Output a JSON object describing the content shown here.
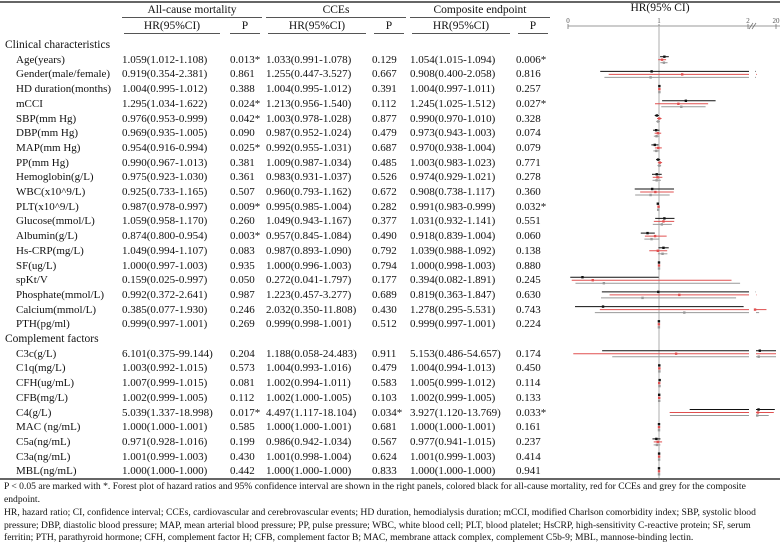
{
  "headers": {
    "group1": "All-cause mortality",
    "group2": "CCEs",
    "group3": "Composite endpoint",
    "plot_title": "HR(95% CI)",
    "hr": "HR(95%CI)",
    "p": "P"
  },
  "chart_data": {
    "type": "forest",
    "title": "HR(95% CI)",
    "axis_ticks": [
      "0",
      "1",
      "2",
      "20"
    ],
    "reference_line": 1,
    "series": [
      {
        "name": "All-cause mortality",
        "color": "#111111"
      },
      {
        "name": "CCEs",
        "color": "#e05050"
      },
      {
        "name": "Composite endpoint",
        "color": "#999999"
      }
    ]
  },
  "rows": [
    {
      "section": "Clinical characteristics"
    },
    {
      "label": "Age(years)",
      "v": [
        "1.059(1.012-1.108)",
        "0.013*",
        "1.033(0.991-1.078)",
        "0.129",
        "1.054(1.015-1.094)",
        "0.006*"
      ]
    },
    {
      "label": "Gender(male/female)",
      "v": [
        "0.919(0.354-2.381)",
        "0.861",
        "1.255(0.447-3.527)",
        "0.667",
        "0.908(0.400-2.058)",
        "0.816"
      ]
    },
    {
      "label": "HD duration(months)",
      "v": [
        "1.004(0.995-1.012)",
        "0.388",
        "1.004(0.995-1.012)",
        "0.391",
        "1.004(0.997-1.011)",
        "0.257"
      ]
    },
    {
      "label": "mCCI",
      "v": [
        "1.295(1.034-1.622)",
        "0.024*",
        "1.213(0.956-1.540)",
        "0.112",
        "1.245(1.025-1.512)",
        "0.027*"
      ]
    },
    {
      "label": "SBP(mm Hg)",
      "v": [
        "0.976(0.953-0.999)",
        "0.042*",
        "1.003(0.978-1.028)",
        "0.877",
        "0.990(0.970-1.010)",
        "0.328"
      ]
    },
    {
      "label": "DBP(mm Hg)",
      "v": [
        "0.969(0.935-1.005)",
        "0.090",
        "0.987(0.952-1.024)",
        "0.479",
        "0.973(0.943-1.003)",
        "0.074"
      ]
    },
    {
      "label": "MAP(mm Hg)",
      "v": [
        "0.954(0.916-0.994)",
        "0.025*",
        "0.992(0.955-1.031)",
        "0.687",
        "0.970(0.938-1.004)",
        "0.079"
      ]
    },
    {
      "label": "PP(mm Hg)",
      "v": [
        "0.990(0.967-1.013)",
        "0.381",
        "1.009(0.987-1.034)",
        "0.485",
        "1.003(0.983-1.023)",
        "0.771"
      ]
    },
    {
      "label": "Hemoglobin(g/L)",
      "v": [
        "0.975(0.923-1.030)",
        "0.361",
        "0.983(0.931-1.037)",
        "0.526",
        "0.974(0.929-1.021)",
        "0.278"
      ]
    },
    {
      "label": "WBC(x10^9/L)",
      "v": [
        "0.925(0.733-1.165)",
        "0.507",
        "0.960(0.793-1.162)",
        "0.672",
        "0.908(0.738-1.117)",
        "0.360"
      ]
    },
    {
      "label": "PLT(x10^9/L)",
      "v": [
        "0.987(0.978-0.997)",
        "0.009*",
        "0.995(0.985-1.004)",
        "0.282",
        "0.991(0.983-0.999)",
        "0.032*"
      ]
    },
    {
      "label": "Glucose(mmol/L)",
      "v": [
        "1.059(0.958-1.170)",
        "0.260",
        "1.049(0.943-1.167)",
        "0.377",
        "1.031(0.932-1.141)",
        "0.551"
      ]
    },
    {
      "label": "Albumin(g/L)",
      "v": [
        "0.874(0.800-0.954)",
        "0.003*",
        "0.957(0.845-1.084)",
        "0.490",
        "0.918(0.839-1.004)",
        "0.060"
      ]
    },
    {
      "label": "Hs-CRP(mg/L)",
      "v": [
        "1.049(0.994-1.107)",
        "0.083",
        "0.987(0.893-1.090)",
        "0.792",
        "1.039(0.988-1.092)",
        "0.138"
      ]
    },
    {
      "label": "SF(ug/L)",
      "v": [
        "1.000(0.997-1.003)",
        "0.935",
        "1.000(0.996-1.003)",
        "0.794",
        "1.000(0.998-1.003)",
        "0.880"
      ]
    },
    {
      "label": "spKt/V",
      "v": [
        "0.159(0.025-0.997)",
        "0.050",
        "0.272(0.041-1.797)",
        "0.177",
        "0.394(0.082-1.891)",
        "0.245"
      ]
    },
    {
      "label": "Phosphate(mmol/L)",
      "v": [
        "0.992(0.372-2.641)",
        "0.987",
        "1.223(0.457-3.277)",
        "0.689",
        "0.819(0.363-1.847)",
        "0.630"
      ]
    },
    {
      "label": "Calcium(mmol/L)",
      "v": [
        "0.385(0.077-1.930)",
        "0.246",
        "2.032(0.350-11.808)",
        "0.430",
        "1.278(0.295-5.531)",
        "0.743"
      ]
    },
    {
      "label": "PTH(pg/ml)",
      "v": [
        "0.999(0.997-1.001)",
        "0.269",
        "0.999(0.998-1.001)",
        "0.512",
        "0.999(0.997-1.001)",
        "0.224"
      ]
    },
    {
      "section": "Complement factors"
    },
    {
      "label": "C3c(g/L)",
      "v": [
        "6.101(0.375-99.144)",
        "0.204",
        "1.188(0.058-24.483)",
        "0.911",
        "5.153(0.486-54.657)",
        "0.174"
      ]
    },
    {
      "label": "C1q(mg/L)",
      "v": [
        "1.003(0.992-1.015)",
        "0.573",
        "1.004(0.993-1.016)",
        "0.479",
        "1.004(0.994-1.013)",
        "0.450"
      ]
    },
    {
      "label": "CFH(ug/mL)",
      "v": [
        "1.007(0.999-1.015)",
        "0.081",
        "1.002(0.994-1.011)",
        "0.583",
        "1.005(0.999-1.012)",
        "0.114"
      ]
    },
    {
      "label": "CFB(mg/L)",
      "v": [
        "1.002(0.999-1.005)",
        "0.112",
        "1.002(1.000-1.005)",
        "0.103",
        "1.002(0.999-1.005)",
        "0.133"
      ]
    },
    {
      "label": "C4(g/L)",
      "v": [
        "5.039(1.337-18.998)",
        "0.017*",
        "4.497(1.117-18.104)",
        "0.034*",
        "3.927(1.120-13.769)",
        "0.033*"
      ]
    },
    {
      "label": "MAC (ng/mL)",
      "v": [
        "1.000(1.000-1.001)",
        "0.585",
        "1.000(1.000-1.001)",
        "0.681",
        "1.000(1.000-1.001)",
        "0.161"
      ]
    },
    {
      "label": "C5a(ng/mL)",
      "v": [
        "0.971(0.928-1.016)",
        "0.199",
        "0.986(0.942-1.034)",
        "0.567",
        "0.977(0.941-1.015)",
        "0.237"
      ]
    },
    {
      "label": "C3a(ng/mL)",
      "v": [
        "1.001(0.999-1.003)",
        "0.430",
        "1.001(0.998-1.004)",
        "0.624",
        "1.001(0.999-1.003)",
        "0.414"
      ]
    },
    {
      "label": "MBL(ng/mL)",
      "v": [
        "1.000(1.000-1.000)",
        "0.442",
        "1.000(1.000-1.000)",
        "0.833",
        "1.000(1.000-1.000)",
        "0.941"
      ]
    }
  ],
  "footnotes": {
    "note": "P < 0.05 are marked with *. Forest plot of hazard ratios and 95% confidence interval are shown in the right panels, colored black for all-cause mortality, red for CCEs and grey for the composite endpoint.",
    "abbreviations": "HR, hazard ratio; CI, confidence interval; CCEs, cardiovascular and cerebrovascular events; HD duration, hemodialysis duration; mCCI, modified Charlson comorbidity index; SBP, systolic blood pressure; DBP, diastolic blood pressure; MAP, mean arterial blood pressure; PP, pulse pressure; WBC, white blood cell; PLT, blood platelet; HsCRP, high-sensitivity C-reactive protein; SF, serum ferritin; PTH, parathyroid hormone; CFH, complement factor H; CFB, complement factor B; MAC, membrane attack complex, complement C5b-9; MBL, mannose-binding lectin."
  }
}
